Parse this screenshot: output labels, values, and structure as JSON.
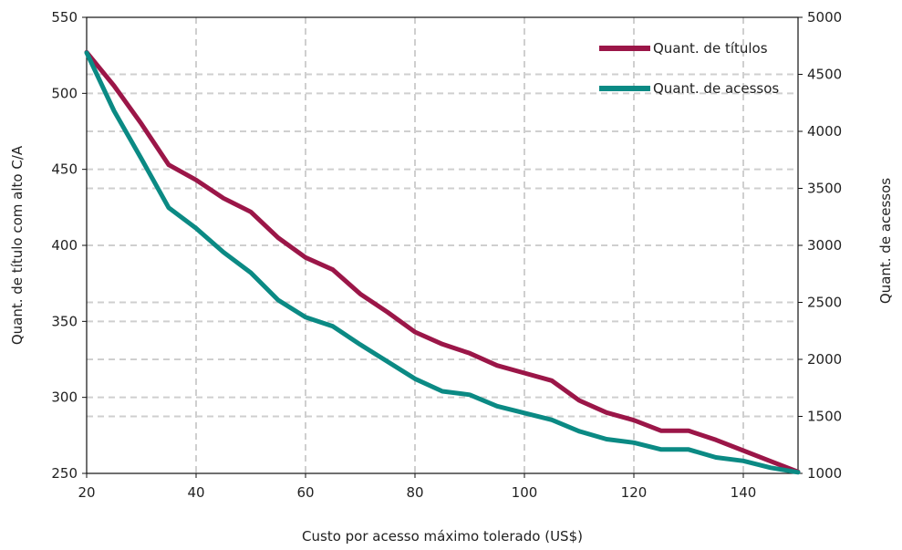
{
  "chart_data": {
    "type": "line",
    "title": "",
    "xlabel": "Custo por acesso máximo tolerado (US$)",
    "ylabel_left": "Quant. de título com alto C/A",
    "ylabel_right": "Quant. de acessos",
    "xlim": [
      20,
      150
    ],
    "ylim_left": [
      250,
      550
    ],
    "ylim_right": [
      1000,
      5000
    ],
    "x_ticks": [
      20,
      40,
      60,
      80,
      100,
      120,
      140
    ],
    "y_left_ticks": [
      250,
      300,
      350,
      400,
      450,
      500,
      550
    ],
    "y_right_ticks": [
      1000,
      1500,
      2000,
      2500,
      3000,
      3500,
      4000,
      4500,
      5000
    ],
    "grid": true,
    "legend_position": "top-right",
    "x": [
      20,
      25,
      30,
      35,
      40,
      45,
      50,
      55,
      60,
      65,
      70,
      75,
      80,
      85,
      90,
      95,
      100,
      105,
      110,
      115,
      120,
      125,
      130,
      135,
      140,
      145,
      150
    ],
    "series": [
      {
        "name": "Quant. de títulos",
        "axis": "left",
        "color": "#9b1648",
        "values": [
          527,
          505,
          480,
          453,
          443,
          431,
          422,
          405,
          392,
          384,
          368,
          356,
          343,
          335,
          329,
          321,
          316,
          311,
          298,
          290,
          285,
          278,
          278,
          272,
          265,
          258,
          251
        ]
      },
      {
        "name": "Quant. de acessos",
        "axis": "right",
        "color": "#0b8a84",
        "values": [
          4690,
          4180,
          3760,
          3330,
          3150,
          2940,
          2760,
          2520,
          2370,
          2290,
          2130,
          1980,
          1830,
          1720,
          1690,
          1590,
          1530,
          1470,
          1370,
          1300,
          1270,
          1210,
          1210,
          1140,
          1110,
          1050,
          1010
        ]
      }
    ]
  }
}
